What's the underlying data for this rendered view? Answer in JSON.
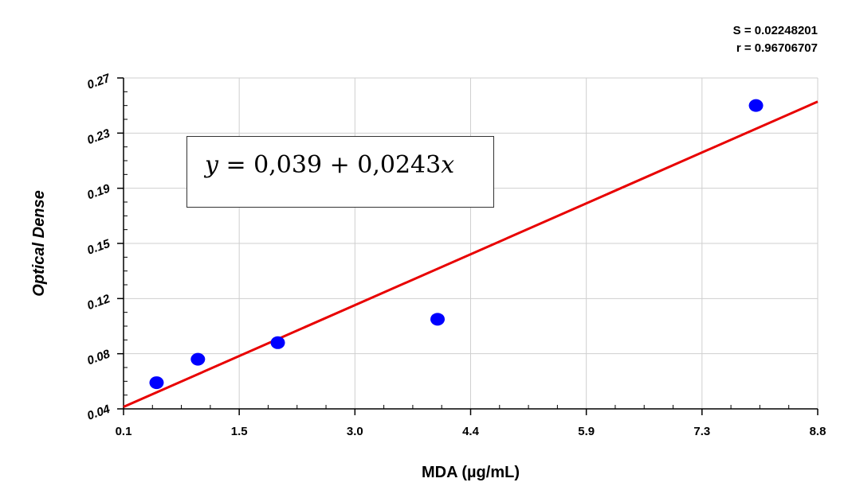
{
  "chart_data": {
    "type": "scatter",
    "title": "",
    "xlabel": "MDA (µg/mL)",
    "ylabel": "Optical Dense",
    "xlim": [
      0.1,
      8.8
    ],
    "ylim": [
      0.04,
      0.27
    ],
    "x_ticks": [
      "0.1",
      "1.5",
      "3.0",
      "4.4",
      "5.9",
      "7.3",
      "8.8"
    ],
    "y_ticks": [
      "0.04",
      "0.08",
      "0.12",
      "0.15",
      "0.19",
      "0.23",
      "0.27"
    ],
    "grid": true,
    "series": [
      {
        "points": [
          {
            "x": 0.5,
            "y": 0.059
          },
          {
            "x": 1.0,
            "y": 0.076
          },
          {
            "x": 2.0,
            "y": 0.088
          },
          {
            "x": 4.0,
            "y": 0.105
          },
          {
            "x": 8.0,
            "y": 0.25
          }
        ],
        "color": "#0000ff"
      }
    ],
    "regression": {
      "intercept": 0.039,
      "slope": 0.0243,
      "color": "#e80000"
    },
    "equation": "y = 0,039 + 0,0243x",
    "stats": {
      "s_label": "S = 0.02248201",
      "r_label": "r = 0.96706707"
    }
  }
}
